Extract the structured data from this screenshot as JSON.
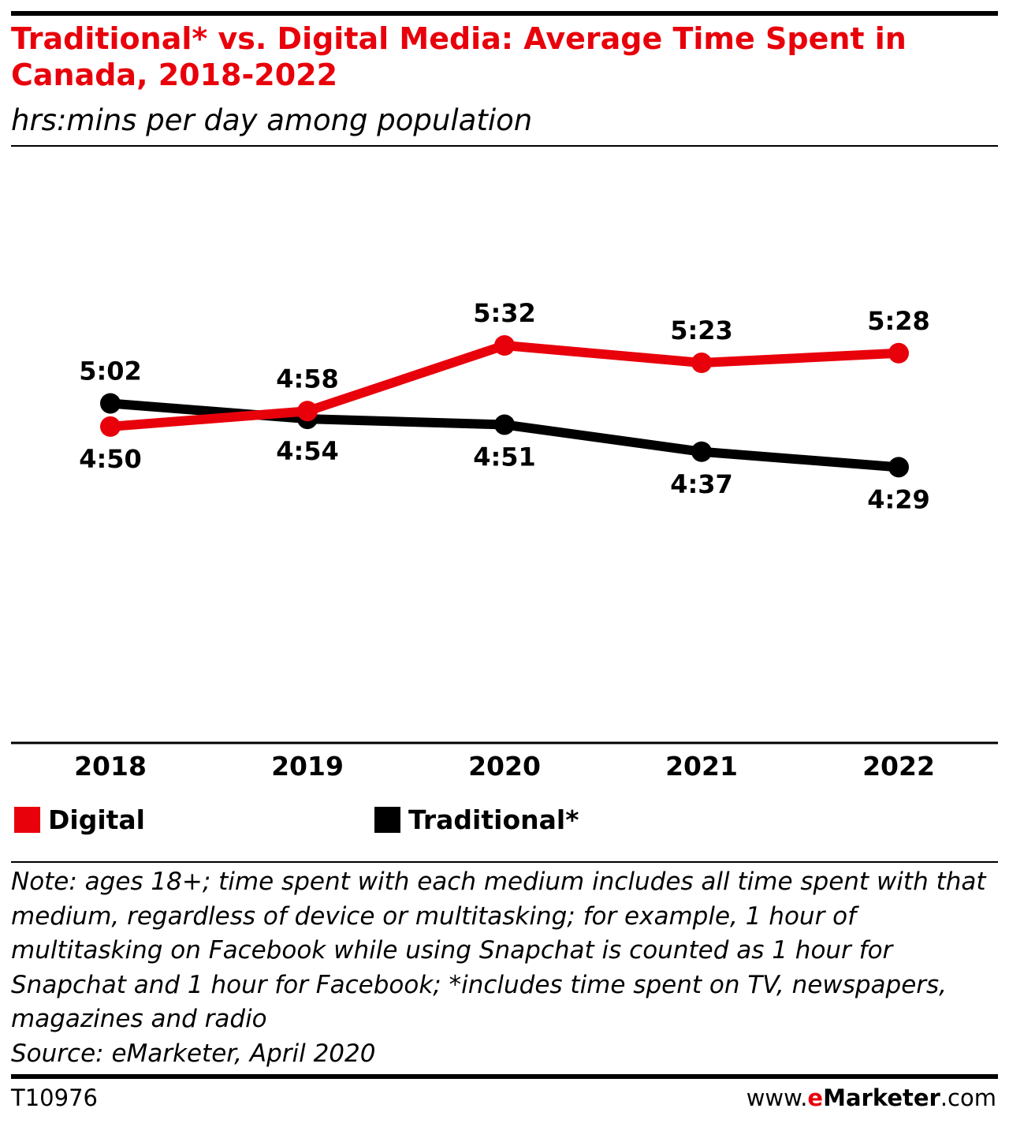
{
  "header": {
    "title": "Traditional* vs. Digital Media: Average Time Spent in Canada, 2018-2022",
    "subtitle": "hrs:mins per day among population"
  },
  "colors": {
    "accent": "#e8000b",
    "digital": "#e8000b",
    "traditional": "#000000"
  },
  "chart_data": {
    "type": "line",
    "title": "Traditional* vs. Digital Media: Average Time Spent in Canada, 2018-2022",
    "subtitle": "hrs:mins per day among population",
    "unit": "hrs:mins per day",
    "x": [
      "2018",
      "2019",
      "2020",
      "2021",
      "2022"
    ],
    "series": [
      {
        "name": "Digital",
        "color": "#e8000b",
        "values": [
          "4:50",
          "4:58",
          "5:32",
          "5:23",
          "5:28"
        ],
        "minutes": [
          290,
          298,
          332,
          323,
          328
        ]
      },
      {
        "name": "Traditional*",
        "color": "#000000",
        "values": [
          "5:02",
          "4:54",
          "4:51",
          "4:37",
          "4:29"
        ],
        "minutes": [
          302,
          294,
          291,
          277,
          269
        ]
      }
    ],
    "grid": false,
    "legend": "bottom"
  },
  "legend": {
    "digital": "Digital",
    "traditional": "Traditional*"
  },
  "footer": {
    "note": "Note: ages 18+; time spent with each medium includes all time spent with that medium, regardless of device or multitasking; for example, 1 hour of multitasking on Facebook while using Snapchat is counted as 1 hour for Snapchat and 1 hour for Facebook; *includes time spent on TV, newspapers, magazines and radio",
    "source": "Source: eMarketer, April 2020",
    "chart_id": "T10976",
    "brand_prefix": "www.",
    "brand_e": "e",
    "brand_name": "Marketer",
    "brand_suffix": ".com"
  }
}
